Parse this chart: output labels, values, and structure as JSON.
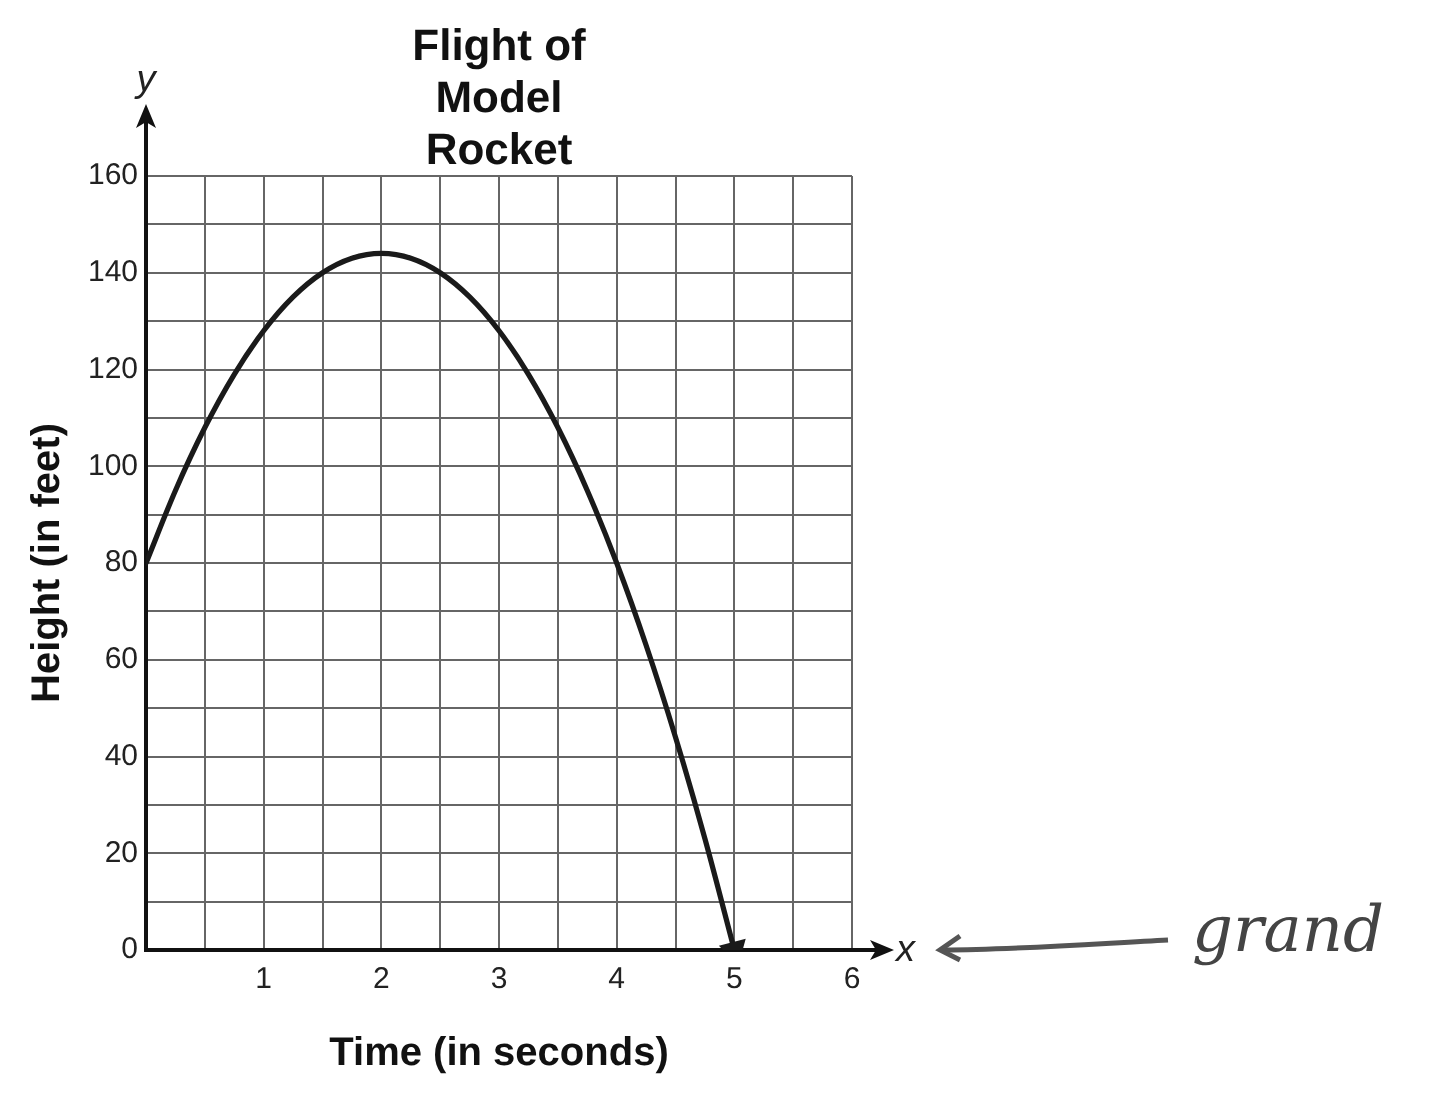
{
  "chart_data": {
    "type": "line",
    "title": "Flight of Model Rocket",
    "xlabel": "Time (in seconds)",
    "ylabel": "Height (in feet)",
    "x": [
      0,
      0.25,
      0.5,
      0.75,
      1,
      1.25,
      1.5,
      1.75,
      2,
      2.25,
      2.5,
      2.75,
      3,
      3.25,
      3.5,
      3.75,
      4,
      4.25,
      4.5,
      4.75,
      5
    ],
    "series": [
      {
        "color": "#1a1a1a",
        "values": [
          80,
          95,
          108,
          119,
          128,
          135,
          140,
          143,
          144,
          143,
          140,
          135,
          128,
          119,
          108,
          95,
          80,
          63,
          44,
          23,
          0
        ]
      }
    ],
    "xlim": [
      0,
      6
    ],
    "xticks": [
      {
        "value": 0,
        "label": null
      },
      {
        "value": 0.5,
        "label": null
      },
      1,
      {
        "value": 1.5,
        "label": null
      },
      2,
      {
        "value": 2.5,
        "label": null
      },
      3,
      {
        "value": 3.5,
        "label": null
      },
      4,
      {
        "value": 4.5,
        "label": null
      },
      5,
      {
        "value": 5.5,
        "label": null
      },
      6
    ],
    "ylim": [
      0,
      160
    ],
    "yticks": [
      0,
      {
        "value": 10,
        "label": null
      },
      20,
      {
        "value": 30,
        "label": null
      },
      40,
      {
        "value": 50,
        "label": null
      },
      60,
      {
        "value": 70,
        "label": null
      },
      80,
      {
        "value": 90,
        "label": null
      },
      100,
      {
        "value": 110,
        "label": null
      },
      120,
      {
        "value": 130,
        "label": null
      },
      140,
      {
        "value": 150,
        "label": null
      },
      160
    ],
    "grid": true,
    "marker": "none",
    "line_style": "solid",
    "annotations": [
      "y",
      "x",
      "grand"
    ]
  }
}
